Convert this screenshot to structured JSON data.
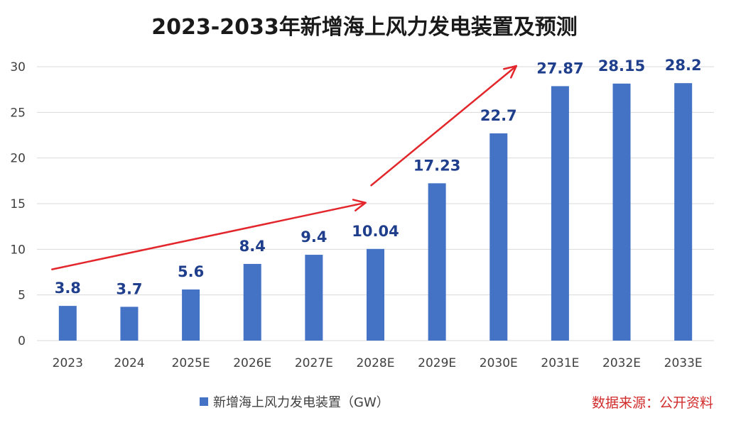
{
  "chart_data": {
    "type": "bar",
    "title": "2023-2033年新增海上风力发电装置及预测",
    "xlabel": "",
    "ylabel": "",
    "categories": [
      "2023",
      "2024",
      "2025E",
      "2026E",
      "2027E",
      "2028E",
      "2029E",
      "2030E",
      "2031E",
      "2032E",
      "2033E"
    ],
    "series": [
      {
        "name": "新增海上风力发电装置（GW）",
        "values": [
          3.8,
          3.7,
          5.6,
          8.4,
          9.4,
          10.04,
          17.23,
          22.7,
          27.87,
          28.15,
          28.2
        ],
        "labels": [
          "3.8",
          "3.7",
          "5.6",
          "8.4",
          "9.4",
          "10.04",
          "17.23",
          "22.7",
          "27.87",
          "28.15",
          "28.2"
        ],
        "color": "#4472C4"
      }
    ],
    "ylim": [
      0,
      30
    ],
    "yticks": [
      "0",
      "5",
      "10",
      "15",
      "20",
      "25",
      "30"
    ],
    "ytick_values": [
      0,
      5,
      10,
      15,
      20,
      25,
      30
    ],
    "grid": true,
    "legend": {
      "position": "bottom-left",
      "entries": [
        "新增海上风力发电装置（GW）"
      ]
    },
    "annotations": [
      {
        "type": "arrow",
        "description": "upward trend arrow",
        "from": {
          "category": "2023",
          "value": 7.8
        },
        "to": {
          "category": "2028E",
          "value": 15.1
        }
      },
      {
        "type": "arrow",
        "description": "steeper upward trend arrow",
        "from": {
          "category": "2028E",
          "value": 17.0
        },
        "to": {
          "category": "2030E",
          "value": 30.0
        }
      }
    ],
    "source_note": "数据来源：公开资料"
  },
  "colors": {
    "bar": "#4472C4",
    "data_label": "#1F3E8C",
    "arrow": "#E3262B",
    "source": "#D12B2B",
    "grid": "#D9D9D9"
  }
}
